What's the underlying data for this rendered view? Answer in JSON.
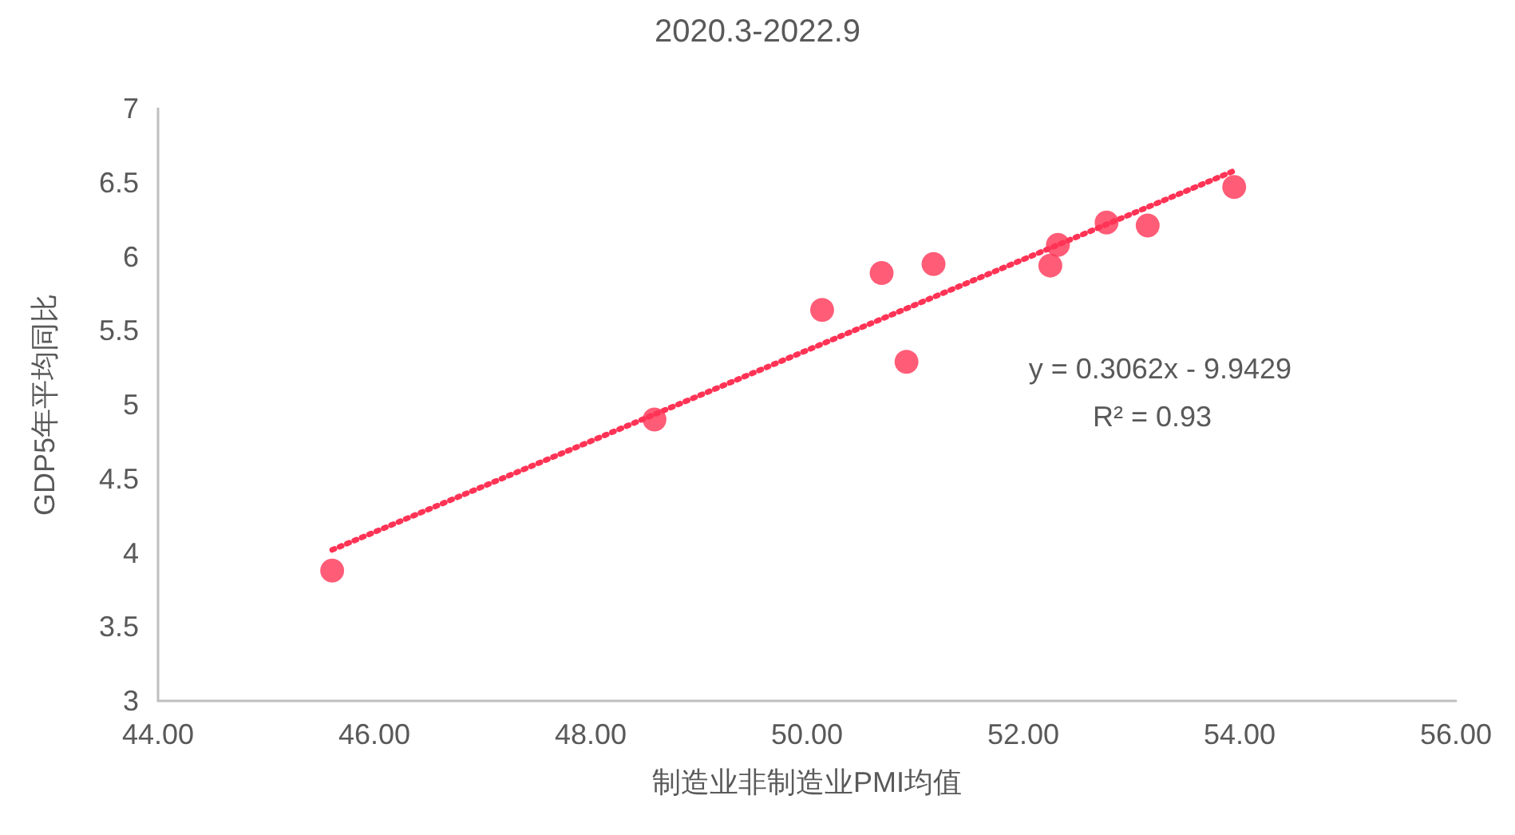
{
  "chart_data": {
    "type": "scatter",
    "title": "2020.3-2022.9",
    "xlabel": "制造业非制造业PMI均值",
    "ylabel": "GDP5年平均同比",
    "xlim": [
      44,
      56
    ],
    "xticks": [
      {
        "value": 44,
        "label": "44.00"
      },
      {
        "value": 46,
        "label": "46.00"
      },
      {
        "value": 48,
        "label": "48.00"
      },
      {
        "value": 50,
        "label": "50.00"
      },
      {
        "value": 52,
        "label": "52.00"
      },
      {
        "value": 54,
        "label": "54.00"
      },
      {
        "value": 56,
        "label": "56.00"
      }
    ],
    "ylim": [
      3,
      7
    ],
    "yticks": [
      3,
      3.5,
      4,
      4.5,
      5,
      5.5,
      6,
      6.5,
      7
    ],
    "grid": false,
    "marker": "circle",
    "series": [
      {
        "type": "scatter",
        "color": "#ff3355",
        "x": [
          45.61,
          48.59,
          50.14,
          50.69,
          50.92,
          51.17,
          52.25,
          52.32,
          52.77,
          53.15,
          53.95
        ],
        "values": [
          3.88,
          4.9,
          5.64,
          5.89,
          5.29,
          5.95,
          5.94,
          6.08,
          6.23,
          6.21,
          6.47
        ]
      },
      {
        "type": "line",
        "color": "#ff3355",
        "line_style": "dotted",
        "marker": "none",
        "x": [
          45.61,
          53.95
        ],
        "values": [
          4.02,
          6.58
        ]
      }
    ],
    "annotations": [
      "y = 0.3062x - 9.9429",
      "R² = 0.93"
    ]
  }
}
